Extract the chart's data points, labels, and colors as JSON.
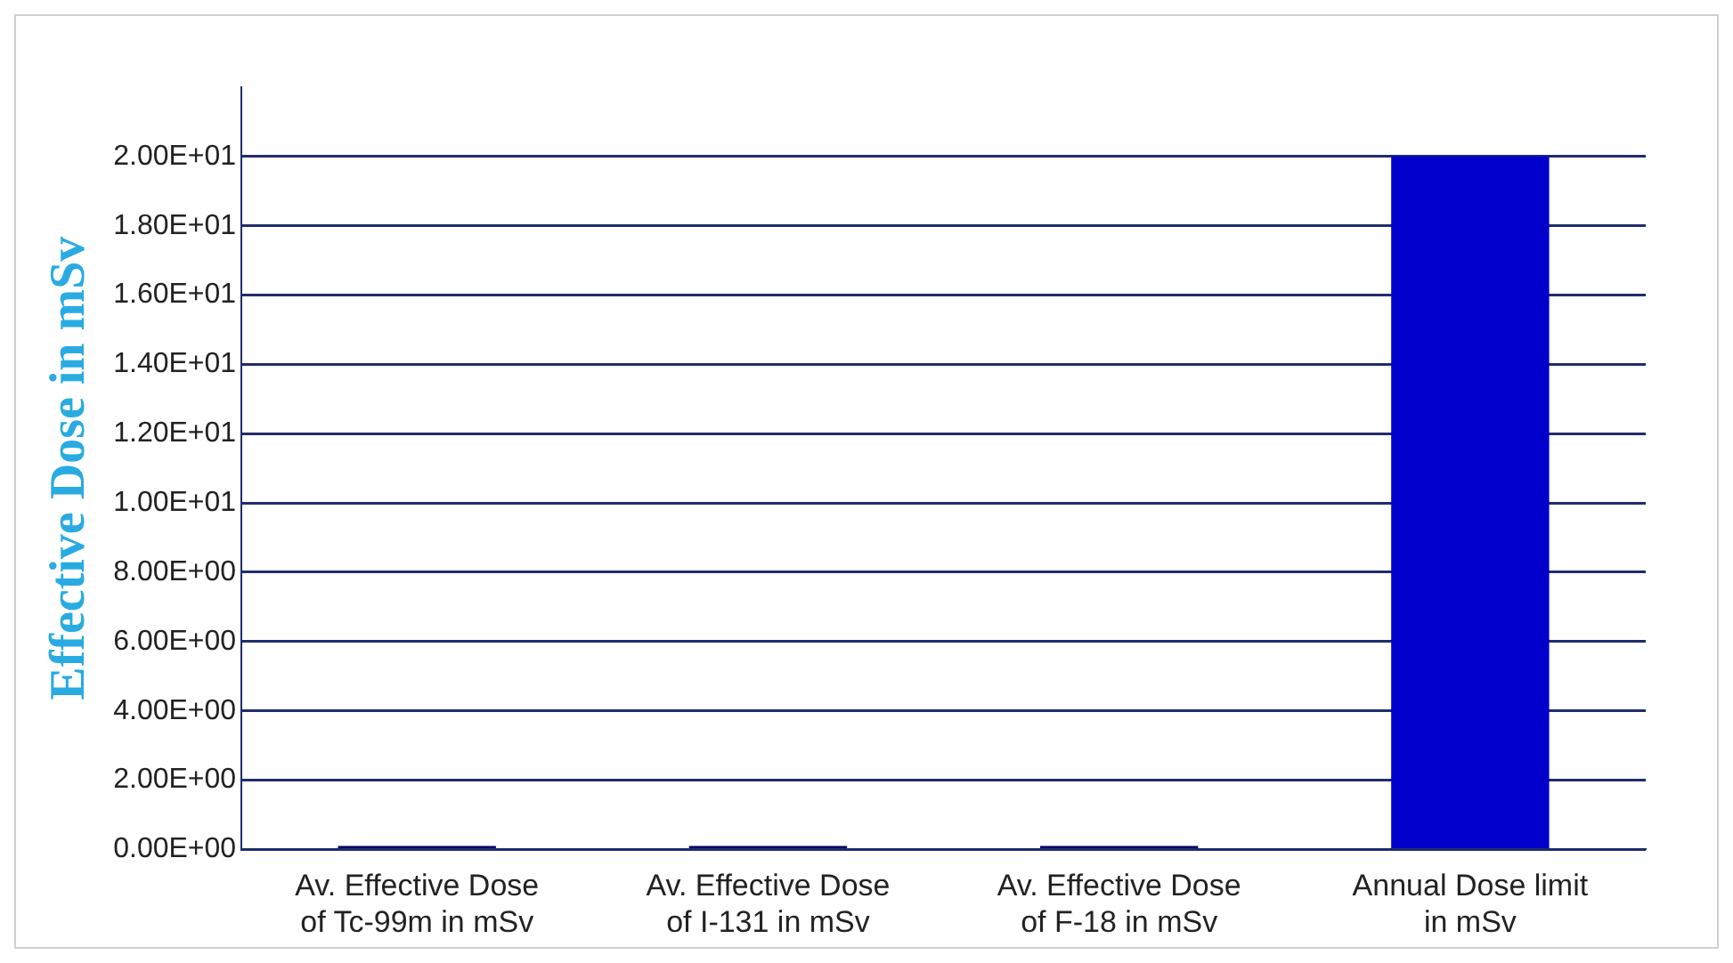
{
  "chart_data": {
    "type": "bar",
    "ylabel": "Effective Dose in mSv",
    "categories": [
      "Av. Effective Dose of Tc-99m in mSv",
      "Av. Effective Dose of I-131 in mSv",
      "Av. Effective Dose of F-18 in mSv",
      "Annual Dose limit in mSv"
    ],
    "values": [
      0.1,
      0.1,
      0.1,
      20
    ],
    "colors": [
      "#000066",
      "#000066",
      "#000066",
      "#0000cc"
    ],
    "ylim": [
      0,
      22
    ],
    "yticks": [
      {
        "value": 0,
        "label": "0.00E+00"
      },
      {
        "value": 2,
        "label": "2.00E+00"
      },
      {
        "value": 4,
        "label": "4.00E+00"
      },
      {
        "value": 6,
        "label": "6.00E+00"
      },
      {
        "value": 8,
        "label": "8.00E+00"
      },
      {
        "value": 10,
        "label": "1.00E+01"
      },
      {
        "value": 12,
        "label": "1.20E+01"
      },
      {
        "value": 14,
        "label": "1.40E+01"
      },
      {
        "value": 16,
        "label": "1.60E+01"
      },
      {
        "value": 18,
        "label": "1.80E+01"
      },
      {
        "value": 20,
        "label": "2.00E+01"
      }
    ],
    "grid": true
  }
}
